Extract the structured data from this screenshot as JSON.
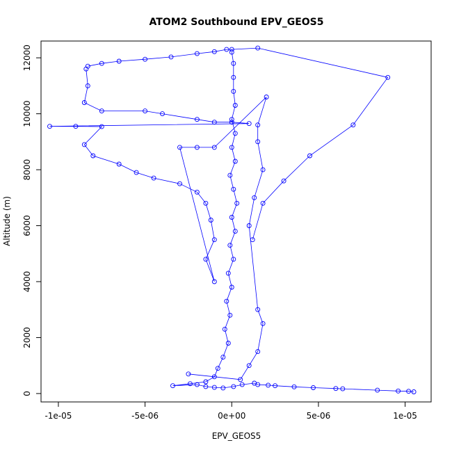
{
  "chart_data": {
    "type": "scatter",
    "title": "ATOM2 Southbound EPV_GEOS5",
    "xlabel": "EPV_GEOS5",
    "ylabel": "Altitude (m)",
    "xlim": [
      -1.1e-05,
      1.15e-05
    ],
    "ylim": [
      -300,
      12600
    ],
    "x_ticks": [
      -1e-05,
      -5e-06,
      0,
      5e-06,
      1e-05
    ],
    "x_tick_labels": [
      "-1e-05",
      "-5e-06",
      "0e+00",
      "5e-06",
      "1e-05"
    ],
    "y_ticks": [
      0,
      2000,
      4000,
      6000,
      8000,
      10000,
      12000
    ],
    "y_tick_labels": [
      "0",
      "2000",
      "4000",
      "6000",
      "8000",
      "10000",
      "12000"
    ],
    "marker": "open-circle",
    "grid": false,
    "color": "#0000ff",
    "series": [
      {
        "points": [
          [
            1.05e-05,
            60
          ],
          [
            1.02e-05,
            80
          ],
          [
            9.6e-06,
            90
          ],
          [
            8.4e-06,
            120
          ],
          [
            6.4e-06,
            170
          ],
          [
            6e-06,
            180
          ],
          [
            4.7e-06,
            210
          ],
          [
            3.6e-06,
            240
          ],
          [
            2.5e-06,
            280
          ],
          [
            2.1e-06,
            300
          ],
          [
            1.5e-06,
            320
          ],
          [
            1.3e-06,
            370
          ],
          [
            6e-07,
            320
          ],
          [
            1e-07,
            250
          ],
          [
            -5e-07,
            200
          ],
          [
            -1e-06,
            220
          ],
          [
            -1.5e-06,
            250
          ],
          [
            -2e-06,
            320
          ],
          [
            -3.4e-06,
            280
          ],
          [
            -2.4e-06,
            350
          ],
          [
            -1.5e-06,
            420
          ],
          [
            -1e-06,
            600
          ],
          [
            -8e-07,
            900
          ],
          [
            -5e-07,
            1300
          ],
          [
            -2e-07,
            1800
          ],
          [
            -4e-07,
            2300
          ],
          [
            -1e-07,
            2800
          ],
          [
            -3e-07,
            3300
          ],
          [
            0,
            3800
          ],
          [
            -2e-07,
            4300
          ],
          [
            1e-07,
            4800
          ],
          [
            -1e-07,
            5300
          ],
          [
            2e-07,
            5800
          ],
          [
            0,
            6300
          ],
          [
            3e-07,
            6800
          ],
          [
            1e-07,
            7300
          ],
          [
            -1e-07,
            7800
          ],
          [
            2e-07,
            8300
          ],
          [
            0,
            8800
          ],
          [
            2e-07,
            9300
          ],
          [
            0,
            9800
          ],
          [
            2e-07,
            10300
          ],
          [
            1e-07,
            10800
          ],
          [
            1e-07,
            11300
          ],
          [
            1e-07,
            11800
          ],
          [
            0,
            12200
          ]
        ]
      },
      {
        "points": [
          [
            -8.3e-06,
            11700
          ],
          [
            -7.5e-06,
            11800
          ],
          [
            -6.5e-06,
            11880
          ],
          [
            -5e-06,
            11950
          ],
          [
            -3.5e-06,
            12030
          ],
          [
            -2e-06,
            12150
          ],
          [
            -1e-06,
            12220
          ],
          [
            -3e-07,
            12300
          ],
          [
            0,
            12300
          ],
          [
            1.5e-06,
            12350
          ],
          [
            9e-06,
            11300
          ],
          [
            7e-06,
            9600
          ],
          [
            4.5e-06,
            8500
          ],
          [
            3e-06,
            7600
          ],
          [
            1.8e-06,
            6800
          ],
          [
            1.2e-06,
            5500
          ]
        ]
      },
      {
        "points": [
          [
            -8.4e-06,
            11600
          ],
          [
            -8.3e-06,
            11000
          ],
          [
            -8.5e-06,
            10400
          ],
          [
            -7.5e-06,
            10100
          ],
          [
            -5e-06,
            10100
          ],
          [
            -4e-06,
            10000
          ],
          [
            -2e-06,
            9800
          ],
          [
            -1e-06,
            9700
          ],
          [
            0,
            9700
          ],
          [
            1e-06,
            9650
          ],
          [
            -1.05e-05,
            9550
          ],
          [
            -9e-06,
            9550
          ],
          [
            -7.5e-06,
            9540
          ],
          [
            -8.5e-06,
            8900
          ],
          [
            -8e-06,
            8500
          ],
          [
            -6.5e-06,
            8200
          ],
          [
            -5.5e-06,
            7900
          ],
          [
            -4.5e-06,
            7700
          ],
          [
            -3e-06,
            7500
          ],
          [
            -2e-06,
            7200
          ],
          [
            -1.5e-06,
            6800
          ],
          [
            -1.2e-06,
            6200
          ],
          [
            -1e-06,
            5500
          ],
          [
            -1.5e-06,
            4800
          ],
          [
            -1e-06,
            4000
          ],
          [
            -3e-06,
            8800
          ],
          [
            -2e-06,
            8800
          ],
          [
            -1e-06,
            8800
          ],
          [
            2e-06,
            10600
          ],
          [
            1.5e-06,
            9600
          ],
          [
            1.5e-06,
            9000
          ],
          [
            1.8e-06,
            8000
          ],
          [
            1.3e-06,
            7000
          ],
          [
            1e-06,
            6000
          ],
          [
            1.5e-06,
            3000
          ],
          [
            1.8e-06,
            2500
          ],
          [
            1.5e-06,
            1500
          ],
          [
            1e-06,
            1000
          ],
          [
            5e-07,
            500
          ],
          [
            -2.5e-06,
            700
          ]
        ]
      }
    ]
  }
}
